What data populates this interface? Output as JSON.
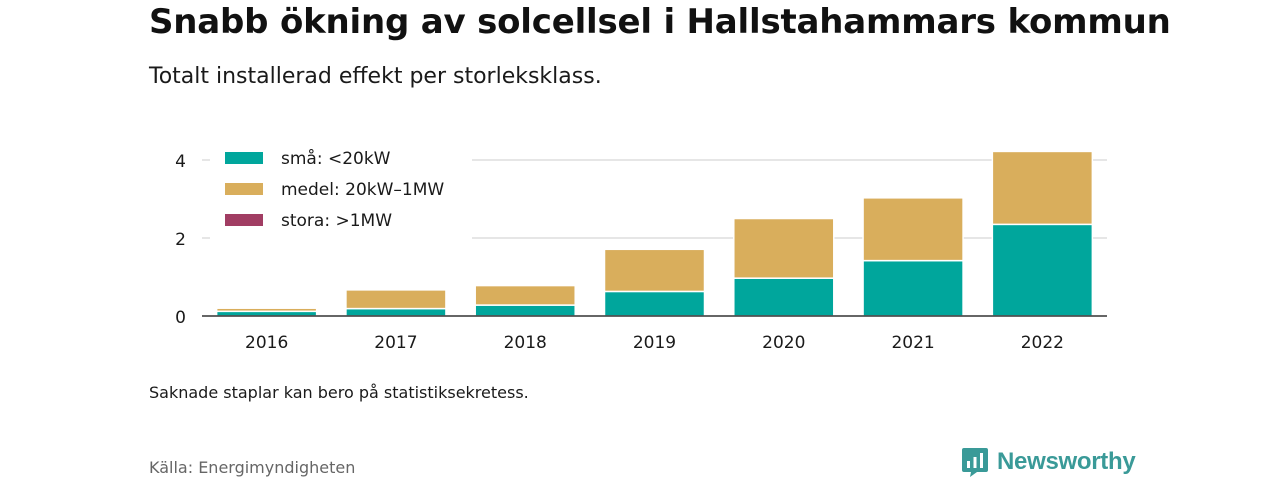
{
  "title": "Snabb ökning av solcellsel i Hallstahammars kommun",
  "subtitle": "Totalt installerad effekt per storleksklass.",
  "note": "Saknade staplar kan bero på statistiksekretess.",
  "source": "Källa: Energimyndigheten",
  "brand": {
    "name": "Newsworthy",
    "icon": "newsworthy-logo-icon",
    "color": "#3a9a98"
  },
  "chart_data": {
    "type": "bar",
    "stacked": true,
    "categories": [
      "2016",
      "2017",
      "2018",
      "2019",
      "2020",
      "2021",
      "2022"
    ],
    "series": [
      {
        "name": "små: <20kW",
        "color": "#00a69c",
        "values": [
          0.12,
          0.19,
          0.28,
          0.63,
          0.97,
          1.42,
          2.35
        ]
      },
      {
        "name": "medel: 20kW–1MW",
        "color": "#d9ae5c",
        "values": [
          0.08,
          0.48,
          0.5,
          1.08,
          1.53,
          1.61,
          1.87
        ]
      },
      {
        "name": "stora: >1MW",
        "color": "#a13d63",
        "values": [
          0,
          0,
          0,
          0,
          0,
          0,
          0
        ]
      }
    ],
    "yticks": [
      0,
      2,
      4
    ],
    "ylim": [
      0,
      4.3
    ],
    "grid": true,
    "legend": "top-left"
  }
}
